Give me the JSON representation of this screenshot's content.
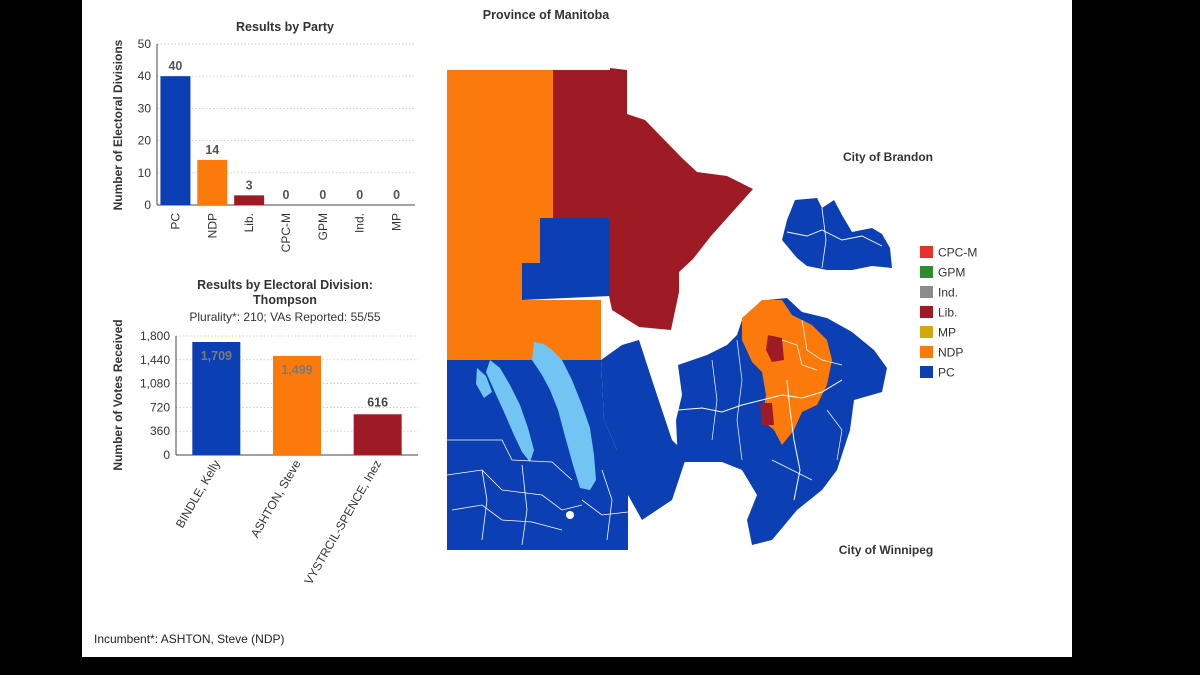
{
  "page_title": "Province of Manitoba",
  "footnote": "Incumbent*: ASHTON, Steve (NDP)",
  "colors": {
    "PC": "#0b3fb3",
    "NDP": "#fc7a0c",
    "Lib.": "#9e1b26",
    "CPC-M": "#e8302f",
    "GPM": "#2e8b2e",
    "Ind.": "#8c8c8c",
    "MP": "#d4a80a",
    "water": "#72c4f2"
  },
  "chart_data": [
    {
      "type": "bar",
      "title": "Results by Party",
      "ylabel": "Number of Electoral Divisions",
      "xlabel": "",
      "categories": [
        "PC",
        "NDP",
        "Lib.",
        "CPC-M",
        "GPM",
        "Ind.",
        "MP"
      ],
      "values": [
        40,
        14,
        3,
        0,
        0,
        0,
        0
      ],
      "colors": [
        "#0b3fb3",
        "#fc7a0c",
        "#9e1b26",
        "#e8302f",
        "#2e8b2e",
        "#8c8c8c",
        "#d4a80a"
      ],
      "ylim": [
        0,
        50
      ],
      "yticks": [
        "0",
        "10",
        "20",
        "30",
        "40",
        "50"
      ],
      "data_labels": [
        "40",
        "14",
        "3",
        "0",
        "0",
        "0",
        "0"
      ],
      "grid": true
    },
    {
      "type": "bar",
      "title": "Results by Electoral Division:",
      "subtitle_name": "Thompson",
      "subtitle": "Plurality*: 210; VAs Reported: 55/55",
      "ylabel": "Number of Votes Received",
      "xlabel": "",
      "categories": [
        "BINDLE, Kelly",
        "ASHTON, Steve",
        "VYSTRCIL-SPENCE, Inez"
      ],
      "values": [
        1709,
        1499,
        616
      ],
      "colors": [
        "#0b3fb3",
        "#fc7a0c",
        "#9e1b26"
      ],
      "ylim": [
        0,
        1800
      ],
      "yticks": [
        "0",
        "360",
        "720",
        "1,080",
        "1,440",
        "1,800"
      ],
      "data_labels": [
        "1,709",
        "1,499",
        "616"
      ],
      "grid": true
    }
  ],
  "map": {
    "title": "Province of Manitoba",
    "brandon_label": "City of Brandon",
    "winnipeg_label": "City of Winnipeg",
    "legend": [
      "CPC-M",
      "GPM",
      "Ind.",
      "Lib.",
      "MP",
      "NDP",
      "PC"
    ]
  }
}
